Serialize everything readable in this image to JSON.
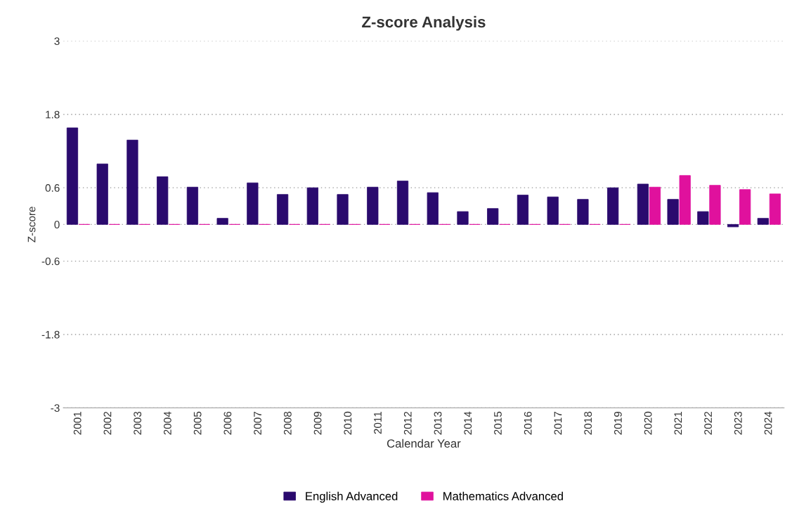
{
  "chart_data": {
    "type": "bar",
    "title": "Z-score Analysis",
    "xlabel": "Calendar Year",
    "ylabel": "Z-score",
    "categories": [
      "2001",
      "2002",
      "2003",
      "2004",
      "2005",
      "2006",
      "2007",
      "2008",
      "2009",
      "2010",
      "2011",
      "2012",
      "2013",
      "2014",
      "2015",
      "2016",
      "2017",
      "2018",
      "2019",
      "2020",
      "2021",
      "2022",
      "2023",
      "2024"
    ],
    "series": [
      {
        "name": "English Advanced",
        "color": "#2a0a6e",
        "values": [
          1.58,
          0.99,
          1.38,
          0.78,
          0.61,
          0.1,
          0.68,
          0.49,
          0.6,
          0.49,
          0.61,
          0.71,
          0.52,
          0.21,
          0.26,
          0.48,
          0.45,
          0.41,
          0.6,
          0.66,
          0.41,
          0.21,
          -0.04,
          0.1
        ]
      },
      {
        "name": "Mathematics Advanced",
        "color": "#e0119d",
        "values": [
          0,
          0,
          0,
          0,
          0,
          0,
          0,
          0,
          0,
          0,
          0,
          0,
          0,
          0,
          0,
          0,
          0,
          0,
          0,
          0.61,
          0.8,
          0.64,
          0.57,
          0.5
        ]
      }
    ],
    "ylim": [
      -3,
      3
    ],
    "yticks": [
      -3,
      -1.8,
      -0.6,
      0,
      0.6,
      1.8,
      3
    ],
    "grid": "y",
    "legend": "bottom"
  }
}
